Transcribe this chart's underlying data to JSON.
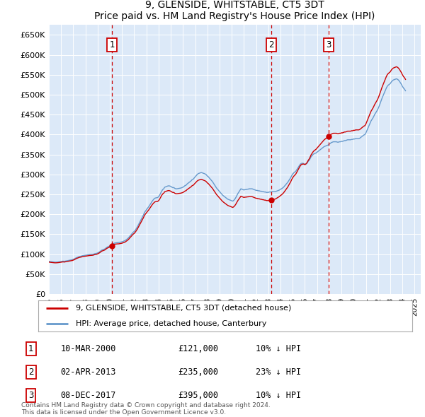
{
  "title": "9, GLENSIDE, WHITSTABLE, CT5 3DT",
  "subtitle": "Price paid vs. HM Land Registry's House Price Index (HPI)",
  "ylim": [
    0,
    675000
  ],
  "yticks": [
    0,
    50000,
    100000,
    150000,
    200000,
    250000,
    300000,
    350000,
    400000,
    450000,
    500000,
    550000,
    600000,
    650000
  ],
  "ytick_labels": [
    "£0",
    "£50K",
    "£100K",
    "£150K",
    "£200K",
    "£250K",
    "£300K",
    "£350K",
    "£400K",
    "£450K",
    "£500K",
    "£550K",
    "£600K",
    "£650K"
  ],
  "xlim_start": 1995.0,
  "xlim_end": 2025.5,
  "bg_color": "#dce9f8",
  "grid_color": "#ffffff",
  "sale_color": "#cc0000",
  "hpi_color": "#6699cc",
  "sales": [
    {
      "num": 1,
      "year": 2000.19,
      "price": 121000,
      "label": "10-MAR-2000",
      "amount": "£121,000",
      "pct": "10% ↓ HPI"
    },
    {
      "num": 2,
      "year": 2013.25,
      "price": 235000,
      "label": "02-APR-2013",
      "amount": "£235,000",
      "pct": "23% ↓ HPI"
    },
    {
      "num": 3,
      "year": 2017.92,
      "price": 395000,
      "label": "08-DEC-2017",
      "amount": "£395,000",
      "pct": "10% ↓ HPI"
    }
  ],
  "legend_label_red": "9, GLENSIDE, WHITSTABLE, CT5 3DT (detached house)",
  "legend_label_blue": "HPI: Average price, detached house, Canterbury",
  "footer": "Contains HM Land Registry data © Crown copyright and database right 2024.\nThis data is licensed under the Open Government Licence v3.0.",
  "hpi_monthly": {
    "years": [
      1995.0,
      1995.083,
      1995.167,
      1995.25,
      1995.333,
      1995.417,
      1995.5,
      1995.583,
      1995.667,
      1995.75,
      1995.833,
      1995.917,
      1996.0,
      1996.083,
      1996.167,
      1996.25,
      1996.333,
      1996.417,
      1996.5,
      1996.583,
      1996.667,
      1996.75,
      1996.833,
      1996.917,
      1997.0,
      1997.083,
      1997.167,
      1997.25,
      1997.333,
      1997.417,
      1997.5,
      1997.583,
      1997.667,
      1997.75,
      1997.833,
      1997.917,
      1998.0,
      1998.083,
      1998.167,
      1998.25,
      1998.333,
      1998.417,
      1998.5,
      1998.583,
      1998.667,
      1998.75,
      1998.833,
      1998.917,
      1999.0,
      1999.083,
      1999.167,
      1999.25,
      1999.333,
      1999.417,
      1999.5,
      1999.583,
      1999.667,
      1999.75,
      1999.833,
      1999.917,
      2000.0,
      2000.083,
      2000.167,
      2000.25,
      2000.333,
      2000.417,
      2000.5,
      2000.583,
      2000.667,
      2000.75,
      2000.833,
      2000.917,
      2001.0,
      2001.083,
      2001.167,
      2001.25,
      2001.333,
      2001.417,
      2001.5,
      2001.583,
      2001.667,
      2001.75,
      2001.833,
      2001.917,
      2002.0,
      2002.083,
      2002.167,
      2002.25,
      2002.333,
      2002.417,
      2002.5,
      2002.583,
      2002.667,
      2002.75,
      2002.833,
      2002.917,
      2003.0,
      2003.083,
      2003.167,
      2003.25,
      2003.333,
      2003.417,
      2003.5,
      2003.583,
      2003.667,
      2003.75,
      2003.833,
      2003.917,
      2004.0,
      2004.083,
      2004.167,
      2004.25,
      2004.333,
      2004.417,
      2004.5,
      2004.583,
      2004.667,
      2004.75,
      2004.833,
      2004.917,
      2005.0,
      2005.083,
      2005.167,
      2005.25,
      2005.333,
      2005.417,
      2005.5,
      2005.583,
      2005.667,
      2005.75,
      2005.833,
      2005.917,
      2006.0,
      2006.083,
      2006.167,
      2006.25,
      2006.333,
      2006.417,
      2006.5,
      2006.583,
      2006.667,
      2006.75,
      2006.833,
      2006.917,
      2007.0,
      2007.083,
      2007.167,
      2007.25,
      2007.333,
      2007.417,
      2007.5,
      2007.583,
      2007.667,
      2007.75,
      2007.833,
      2007.917,
      2008.0,
      2008.083,
      2008.167,
      2008.25,
      2008.333,
      2008.417,
      2008.5,
      2008.583,
      2008.667,
      2008.75,
      2008.833,
      2008.917,
      2009.0,
      2009.083,
      2009.167,
      2009.25,
      2009.333,
      2009.417,
      2009.5,
      2009.583,
      2009.667,
      2009.75,
      2009.833,
      2009.917,
      2010.0,
      2010.083,
      2010.167,
      2010.25,
      2010.333,
      2010.417,
      2010.5,
      2010.583,
      2010.667,
      2010.75,
      2010.833,
      2010.917,
      2011.0,
      2011.083,
      2011.167,
      2011.25,
      2011.333,
      2011.417,
      2011.5,
      2011.583,
      2011.667,
      2011.75,
      2011.833,
      2011.917,
      2012.0,
      2012.083,
      2012.167,
      2012.25,
      2012.333,
      2012.417,
      2012.5,
      2012.583,
      2012.667,
      2012.75,
      2012.833,
      2012.917,
      2013.0,
      2013.083,
      2013.167,
      2013.25,
      2013.333,
      2013.417,
      2013.5,
      2013.583,
      2013.667,
      2013.75,
      2013.833,
      2013.917,
      2014.0,
      2014.083,
      2014.167,
      2014.25,
      2014.333,
      2014.417,
      2014.5,
      2014.583,
      2014.667,
      2014.75,
      2014.833,
      2014.917,
      2015.0,
      2015.083,
      2015.167,
      2015.25,
      2015.333,
      2015.417,
      2015.5,
      2015.583,
      2015.667,
      2015.75,
      2015.833,
      2015.917,
      2016.0,
      2016.083,
      2016.167,
      2016.25,
      2016.333,
      2016.417,
      2016.5,
      2016.583,
      2016.667,
      2016.75,
      2016.833,
      2016.917,
      2017.0,
      2017.083,
      2017.167,
      2017.25,
      2017.333,
      2017.417,
      2017.5,
      2017.583,
      2017.667,
      2017.75,
      2017.833,
      2017.917,
      2018.0,
      2018.083,
      2018.167,
      2018.25,
      2018.333,
      2018.417,
      2018.5,
      2018.583,
      2018.667,
      2018.75,
      2018.833,
      2018.917,
      2019.0,
      2019.083,
      2019.167,
      2019.25,
      2019.333,
      2019.417,
      2019.5,
      2019.583,
      2019.667,
      2019.75,
      2019.833,
      2019.917,
      2020.0,
      2020.083,
      2020.167,
      2020.25,
      2020.333,
      2020.417,
      2020.5,
      2020.583,
      2020.667,
      2020.75,
      2020.833,
      2020.917,
      2021.0,
      2021.083,
      2021.167,
      2021.25,
      2021.333,
      2021.417,
      2021.5,
      2021.583,
      2021.667,
      2021.75,
      2021.833,
      2021.917,
      2022.0,
      2022.083,
      2022.167,
      2022.25,
      2022.333,
      2022.417,
      2022.5,
      2022.583,
      2022.667,
      2022.75,
      2022.833,
      2022.917,
      2023.0,
      2023.083,
      2023.167,
      2023.25,
      2023.333,
      2023.417,
      2023.5,
      2023.583,
      2023.667,
      2023.75,
      2023.833,
      2023.917,
      2024.0,
      2024.083,
      2024.167,
      2024.25
    ],
    "values": [
      82000,
      81500,
      81200,
      81000,
      80800,
      80500,
      80000,
      80000,
      80200,
      80400,
      80800,
      81200,
      81500,
      82000,
      82500,
      82000,
      82500,
      83000,
      83500,
      84000,
      84500,
      85000,
      85500,
      86000,
      87000,
      88000,
      89500,
      91000,
      92000,
      93000,
      94000,
      94500,
      95000,
      96000,
      96500,
      96800,
      97000,
      97500,
      98000,
      98500,
      98800,
      99000,
      99200,
      99500,
      100000,
      101000,
      101500,
      102000,
      103000,
      104500,
      106000,
      108000,
      110000,
      111000,
      112000,
      113000,
      115000,
      117000,
      118500,
      119500,
      121000,
      122000,
      123000,
      126000,
      127000,
      128000,
      128500,
      128800,
      129000,
      129200,
      129800,
      130500,
      131000,
      132000,
      133000,
      134000,
      136000,
      138000,
      140000,
      143000,
      146000,
      149000,
      152000,
      155000,
      157000,
      160000,
      164000,
      168000,
      173000,
      178000,
      183000,
      188000,
      193000,
      198000,
      204000,
      208000,
      211000,
      215000,
      218000,
      222000,
      226000,
      230000,
      234000,
      237000,
      240000,
      241000,
      241500,
      242000,
      244000,
      248000,
      253000,
      258000,
      262000,
      264000,
      268000,
      269000,
      270000,
      271000,
      271500,
      271000,
      270000,
      268000,
      267000,
      267000,
      265000,
      264000,
      264000,
      264500,
      265000,
      265500,
      266000,
      267000,
      268000,
      270000,
      272000,
      273000,
      276000,
      278000,
      280000,
      282000,
      284000,
      287000,
      288000,
      291000,
      294000,
      297000,
      300000,
      302000,
      303000,
      304000,
      305000,
      304000,
      303000,
      302000,
      301000,
      299000,
      296000,
      294000,
      291000,
      288000,
      285000,
      282000,
      278000,
      274000,
      270000,
      266000,
      263000,
      260000,
      257000,
      254000,
      251000,
      248000,
      246000,
      244000,
      242000,
      240000,
      238000,
      237000,
      236000,
      235000,
      234000,
      233000,
      235000,
      238000,
      242000,
      247000,
      252000,
      256000,
      260000,
      264000,
      263000,
      262000,
      261000,
      262000,
      262000,
      263000,
      263000,
      264000,
      264000,
      264000,
      264000,
      263000,
      262000,
      261000,
      260000,
      260000,
      259000,
      259000,
      258000,
      258000,
      257000,
      257000,
      256000,
      256000,
      255000,
      255000,
      255000,
      256000,
      256000,
      256000,
      257000,
      257000,
      257000,
      257000,
      258000,
      259000,
      260000,
      261000,
      263000,
      264000,
      266000,
      268000,
      271000,
      274000,
      277000,
      280000,
      284000,
      288000,
      292000,
      297000,
      301000,
      304000,
      306000,
      308000,
      312000,
      316000,
      320000,
      324000,
      327000,
      328000,
      328000,
      327000,
      325000,
      326000,
      328000,
      332000,
      335000,
      339000,
      344000,
      347000,
      350000,
      352000,
      353000,
      354000,
      356000,
      358000,
      360000,
      362000,
      364000,
      366000,
      368000,
      370000,
      371000,
      372000,
      373000,
      374000,
      376000,
      378000,
      380000,
      381000,
      382000,
      382000,
      382000,
      382000,
      381000,
      381000,
      382000,
      382000,
      383000,
      383000,
      384000,
      385000,
      385000,
      386000,
      387000,
      387000,
      387000,
      387000,
      388000,
      388000,
      389000,
      389000,
      390000,
      390000,
      390000,
      390000,
      391000,
      393000,
      395000,
      397000,
      399000,
      400000,
      404000,
      410000,
      416000,
      422000,
      428000,
      434000,
      438000,
      442000,
      447000,
      452000,
      456000,
      460000,
      465000,
      471000,
      478000,
      485000,
      492000,
      498000,
      504000,
      510000,
      516000,
      521000,
      524000,
      526000,
      528000,
      532000,
      535000,
      537000,
      538000,
      539000,
      540000,
      539000,
      537000,
      534000,
      530000,
      526000,
      521000,
      517000,
      514000,
      510000
    ]
  }
}
